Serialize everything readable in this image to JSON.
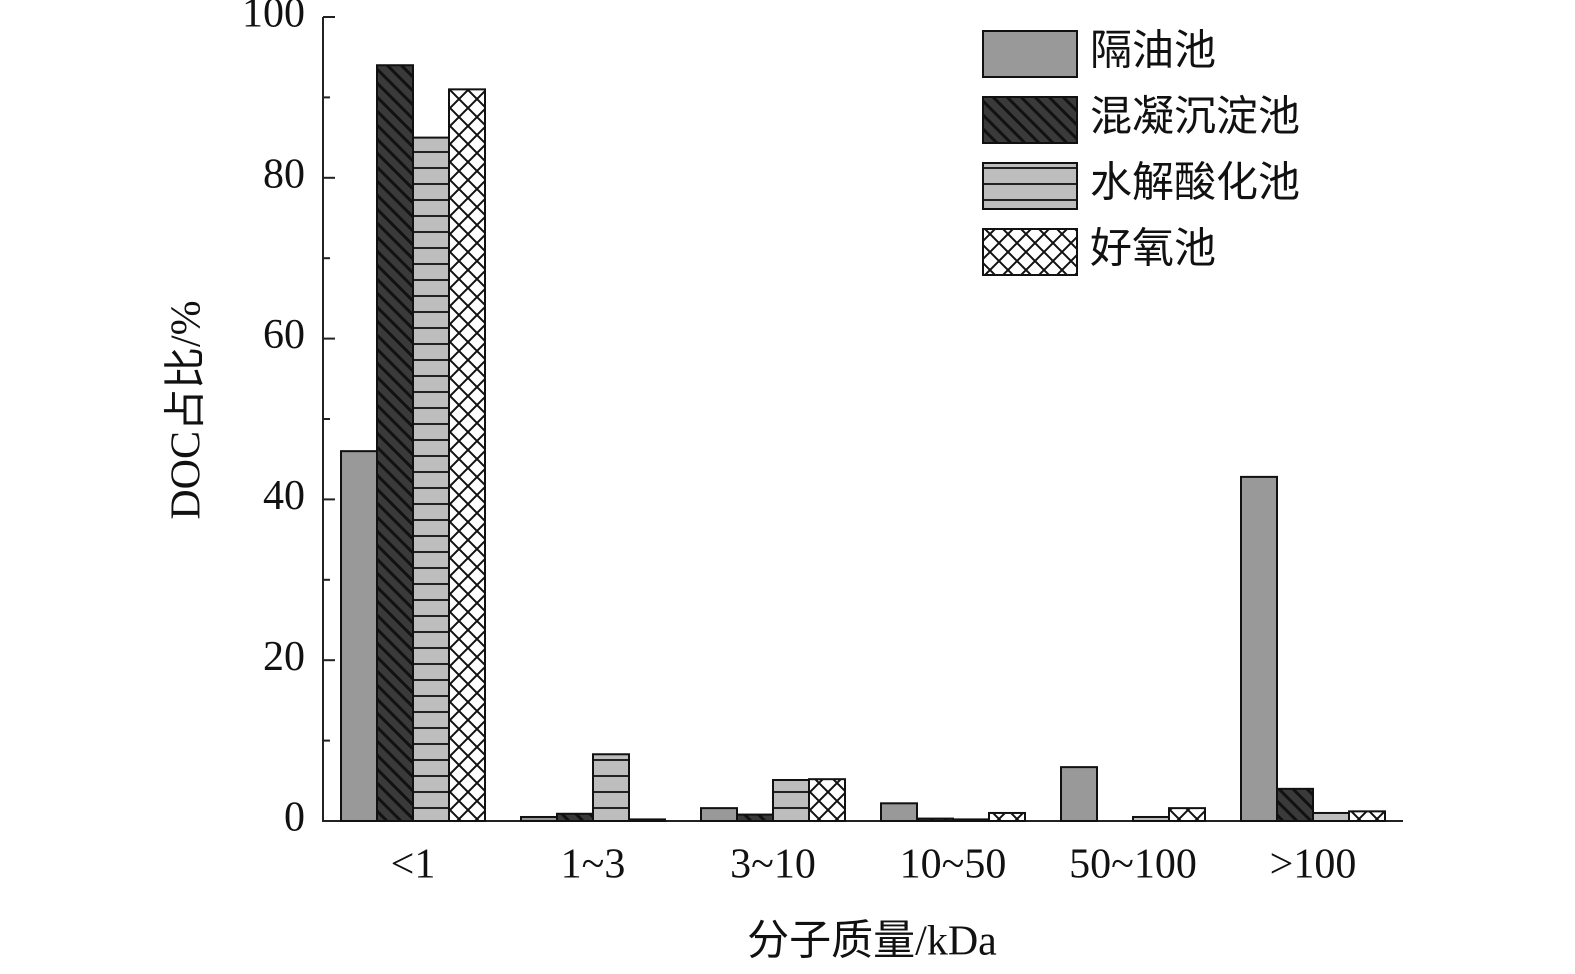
{
  "chart_data": {
    "type": "bar",
    "x_label": "分子质量/kDa",
    "y_label": "DOC占比/%",
    "categories": [
      "<1",
      "1~3",
      "3~10",
      "10~50",
      "50~100",
      ">100"
    ],
    "series": [
      {
        "name": "隔油池",
        "color": "#999999",
        "hatch": "none",
        "values": [
          46,
          0.5,
          1.6,
          2.2,
          6.7,
          42.8
        ]
      },
      {
        "name": "混凝沉淀池",
        "color": "#3a3a3a",
        "hatch": "diagonal",
        "values": [
          94,
          0.9,
          0.8,
          0.3,
          0,
          4.0
        ]
      },
      {
        "name": "水解酸化池",
        "color": "#bdbdbd",
        "hatch": "horizontal",
        "values": [
          85,
          8.3,
          5.1,
          0.2,
          0.5,
          1.0
        ]
      },
      {
        "name": "好氧池",
        "color": "#ffffff",
        "hatch": "cross",
        "values": [
          91,
          0.2,
          5.2,
          1.0,
          1.6,
          1.2
        ]
      }
    ],
    "ylim": [
      0,
      100
    ],
    "yticks": [
      0,
      20,
      40,
      60,
      80,
      100
    ],
    "minor_yticks": [
      10,
      30,
      50,
      70,
      90
    ],
    "legend": "upper right"
  }
}
